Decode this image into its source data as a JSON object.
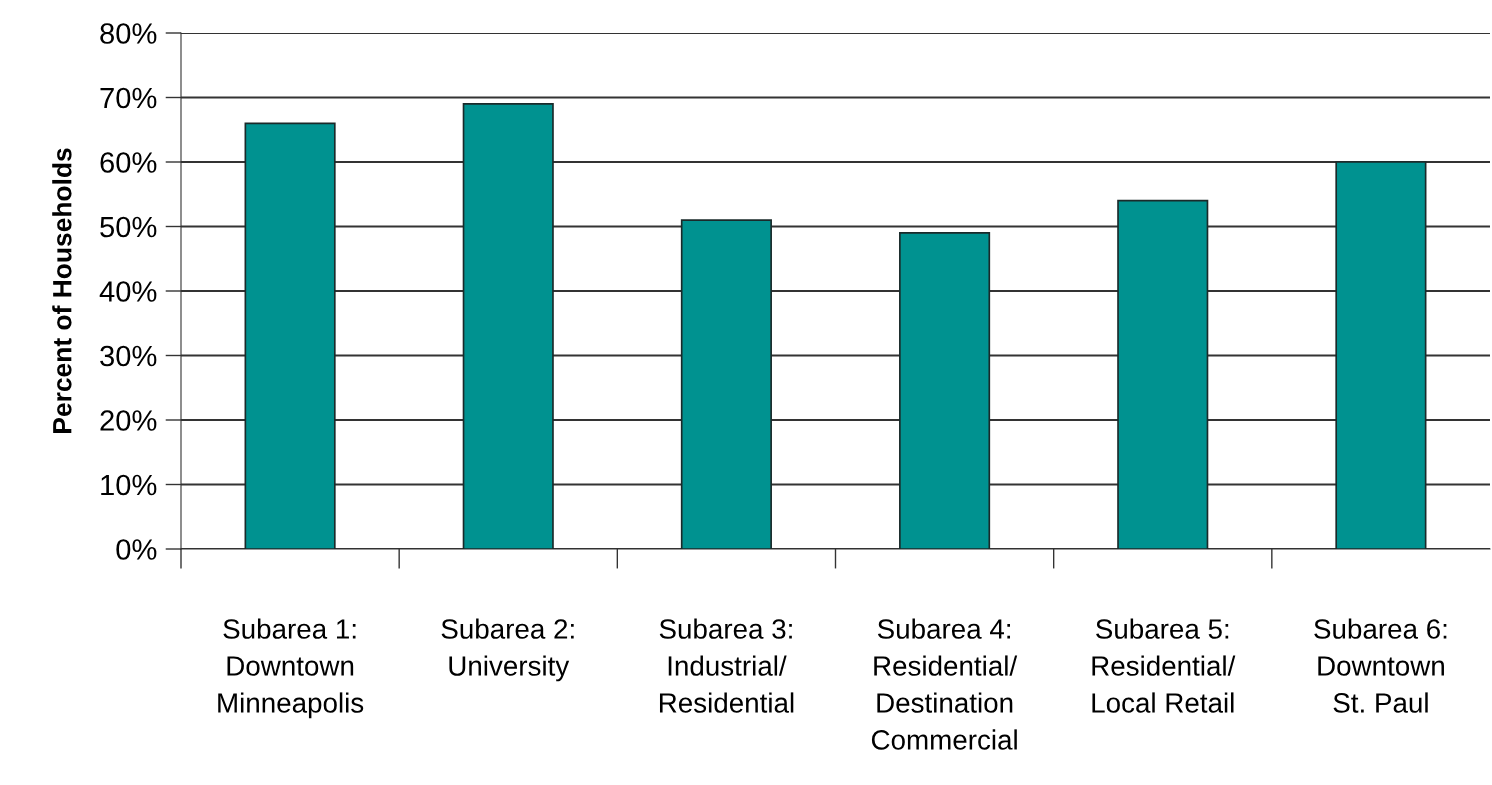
{
  "chart_data": {
    "type": "bar",
    "ylabel": "Percent of Households",
    "categories": [
      "Subarea 1:\nDowntown\nMinneapolis",
      "Subarea 2:\nUniversity",
      "Subarea 3:\nIndustrial/\nResidential",
      "Subarea 4:\nResidential/\nDestination\nCommercial",
      "Subarea 5:\nResidential/\nLocal Retail",
      "Subarea 6:\nDowntown\nSt. Paul"
    ],
    "values": [
      66,
      69,
      51,
      49,
      54,
      60
    ],
    "color": "#009290",
    "ylim": [
      0,
      80
    ],
    "yticks": [
      {
        "value": 0,
        "label": "0%"
      },
      {
        "value": 10,
        "label": "10%"
      },
      {
        "value": 20,
        "label": "20%"
      },
      {
        "value": 30,
        "label": "30%"
      },
      {
        "value": 40,
        "label": "40%"
      },
      {
        "value": 50,
        "label": "50%"
      },
      {
        "value": 60,
        "label": "60%"
      },
      {
        "value": 70,
        "label": "70%"
      },
      {
        "value": 80,
        "label": "80%"
      }
    ],
    "grid": "y"
  }
}
